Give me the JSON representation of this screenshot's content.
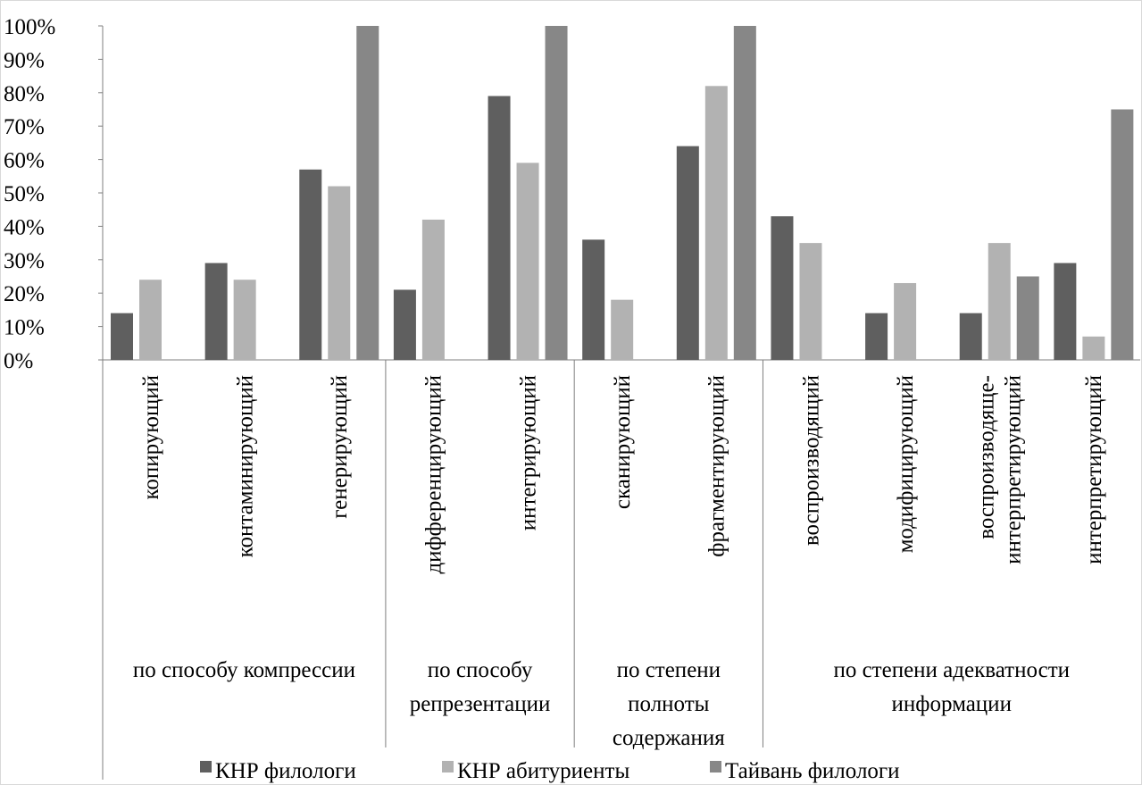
{
  "chart_data": {
    "type": "bar",
    "categories": [
      [
        "копирующий"
      ],
      [
        "контаминирующий"
      ],
      [
        "генерирующий"
      ],
      [
        "дифференцирующий"
      ],
      [
        "интегрирующий"
      ],
      [
        "сканирующий"
      ],
      [
        "фрагментирующий"
      ],
      [
        "воспроизводящий"
      ],
      [
        "модифицирующий"
      ],
      [
        "воспроизводяще-",
        "интерпретирующий"
      ],
      [
        "интерпретирующий"
      ]
    ],
    "groups": [
      {
        "lines": [
          "по способу компрессии"
        ],
        "start": 0,
        "end": 3
      },
      {
        "lines": [
          "по способу",
          "репрезентации"
        ],
        "start": 3,
        "end": 5
      },
      {
        "lines": [
          "по степени",
          "полноты",
          "содержания"
        ],
        "start": 5,
        "end": 7
      },
      {
        "lines": [
          "по степени адекватности",
          "информации"
        ],
        "start": 7,
        "end": 11
      }
    ],
    "series": [
      {
        "name": "КНР филологи",
        "color": "#5f5f5f",
        "values": [
          14,
          29,
          57,
          21,
          79,
          36,
          64,
          43,
          14,
          14,
          29
        ]
      },
      {
        "name": "КНР абитуриенты",
        "color": "#b2b2b2",
        "values": [
          24,
          24,
          52,
          42,
          59,
          18,
          82,
          35,
          23,
          35,
          7
        ]
      },
      {
        "name": "Тайвань филологи",
        "color": "#878787",
        "values": [
          0,
          0,
          100,
          0,
          100,
          0,
          100,
          0,
          0,
          25,
          75
        ]
      }
    ],
    "y_ticks": [
      "0%",
      "10%",
      "20%",
      "30%",
      "40%",
      "50%",
      "60%",
      "70%",
      "80%",
      "90%",
      "100%"
    ],
    "ylim": [
      0,
      100
    ],
    "grid": false,
    "legend_position": "bottom"
  }
}
